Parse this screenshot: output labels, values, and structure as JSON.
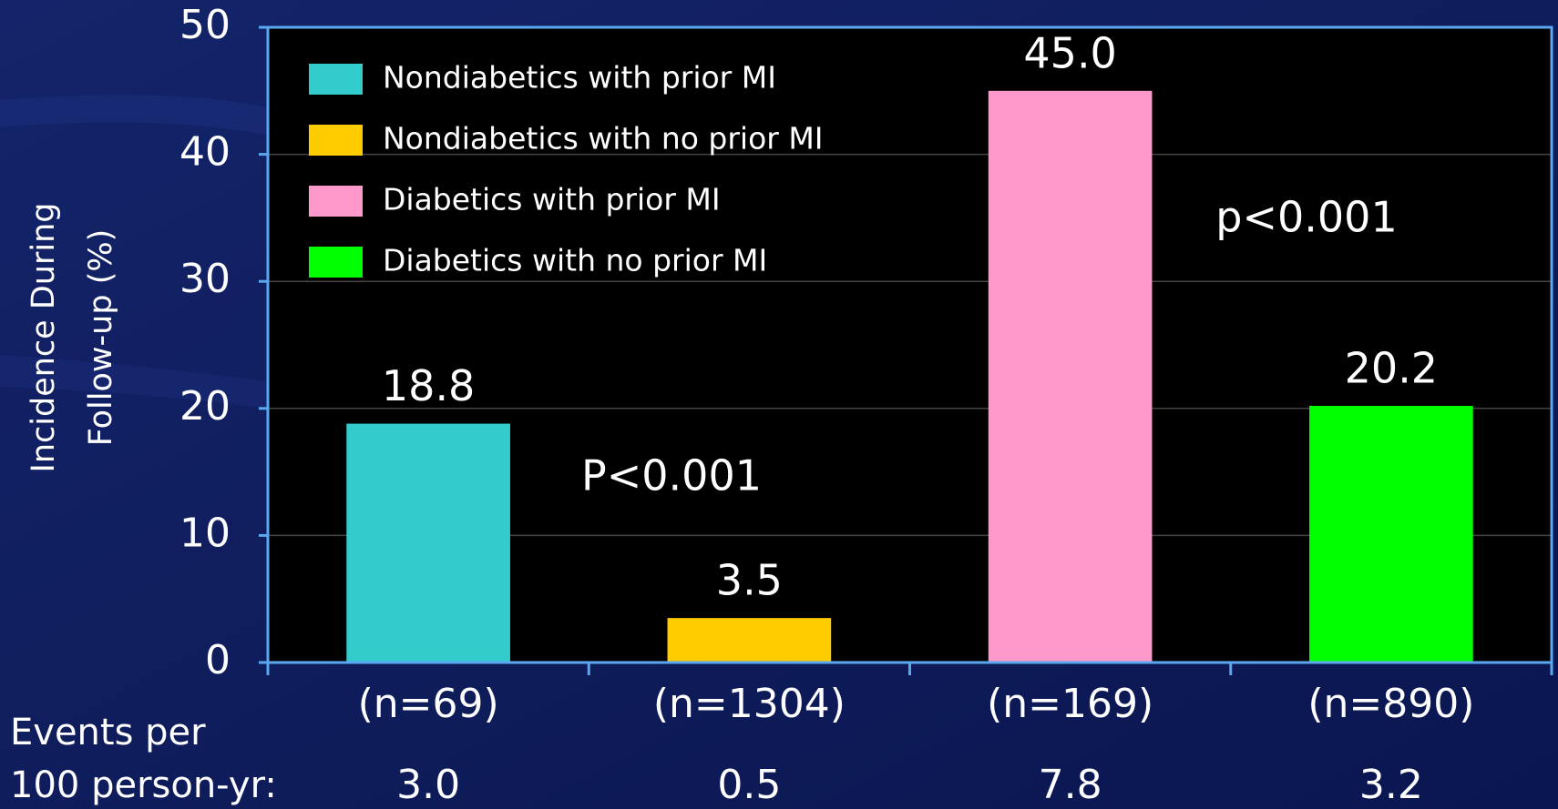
{
  "chart_data": {
    "type": "bar",
    "y_label": [
      "Incidence During",
      "Follow-up (%)"
    ],
    "categories": [
      "(n=69)",
      "(n=1304)",
      "(n=169)",
      "(n=890)"
    ],
    "values": [
      18.8,
      3.5,
      45.0,
      20.2
    ],
    "value_labels": [
      "18.8",
      "3.5",
      "45.0",
      "20.2"
    ],
    "colors": [
      "#33cccc",
      "#ffcc00",
      "#ff99cc",
      "#00ff00"
    ],
    "legend": [
      "Nondiabetics with prior MI",
      "Nondiabetics with no prior MI",
      "Diabetics with prior MI",
      "Diabetics with no prior MI"
    ],
    "annotations": [
      "P<0.001",
      "p<0.001"
    ],
    "events_label": [
      "Events per",
      "100 person-yr:"
    ],
    "events_values": [
      "3.0",
      "0.5",
      "7.8",
      "3.2"
    ],
    "ylim": [
      0,
      50
    ],
    "yticks": [
      0,
      10,
      20,
      30,
      40,
      50
    ],
    "grid": true
  }
}
